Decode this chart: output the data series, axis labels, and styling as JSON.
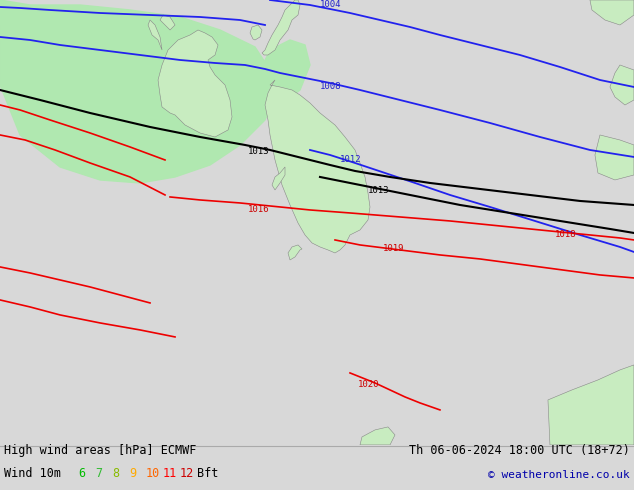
{
  "title_left": "High wind areas [hPa] ECMWF",
  "title_right": "Th 06-06-2024 18:00 UTC (18+72)",
  "wind_label": "Wind 10m",
  "bft_nums": [
    "6",
    "7",
    "8",
    "9",
    "10",
    "11",
    "12"
  ],
  "bft_colors": [
    "#00bb00",
    "#33bb33",
    "#88bb00",
    "#ffaa00",
    "#ff6600",
    "#ff0000",
    "#cc0000"
  ],
  "copyright": "© weatheronline.co.uk",
  "bg_color": "#d8d8d8",
  "land_color": "#c8ecc0",
  "land_outline": "#888888",
  "sea_color": "#d8d8d8",
  "hw_fill": "#b0e8b0",
  "isobar_blue": "#2222ee",
  "isobar_black": "#000000",
  "isobar_red": "#ee0000",
  "label_blue": "#2222cc",
  "label_black": "#000000",
  "label_red": "#cc0000",
  "text_color": "#000000",
  "copyright_color": "#0000aa",
  "footer_bg": "#f0f0f0"
}
